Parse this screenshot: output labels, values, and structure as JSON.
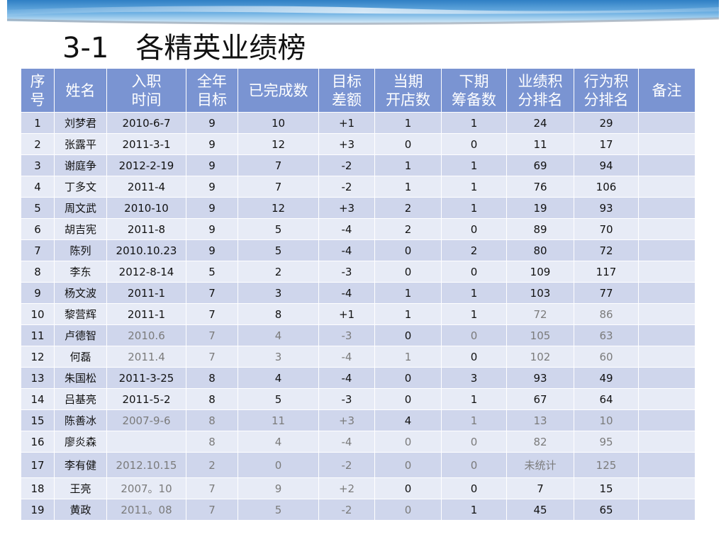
{
  "title": {
    "number": "3-1",
    "text": "各精英业绩榜"
  },
  "colors": {
    "header_bg": "#7a94d2",
    "row_odd": "#cfd6ec",
    "row_even": "#e7ebf6",
    "muted_text": "#7b7b7b"
  },
  "table": {
    "headers": [
      {
        "lines": [
          "序",
          "号"
        ]
      },
      {
        "lines": [
          "姓名"
        ]
      },
      {
        "lines": [
          "入职",
          "时间"
        ]
      },
      {
        "lines": [
          "全年",
          "目标"
        ]
      },
      {
        "lines": [
          "已完成数"
        ]
      },
      {
        "lines": [
          "目标",
          "差额"
        ]
      },
      {
        "lines": [
          "当期",
          "开店数"
        ]
      },
      {
        "lines": [
          "下期",
          "筹备数"
        ]
      },
      {
        "lines": [
          "业绩积",
          "分排名"
        ]
      },
      {
        "lines": [
          "行为积",
          "分排名"
        ]
      },
      {
        "lines": [
          "备注"
        ]
      }
    ],
    "rows": [
      [
        "1",
        "刘梦君",
        "2010-6-7",
        "9",
        "10",
        "+1",
        "1",
        "1",
        "24",
        "29",
        ""
      ],
      [
        "2",
        "张露平",
        "2011-3-1",
        "9",
        "12",
        "+3",
        "0",
        "0",
        "11",
        "17",
        ""
      ],
      [
        "3",
        "谢庭争",
        "2012-2-19",
        "9",
        "7",
        "-2",
        "1",
        "1",
        "69",
        "94",
        ""
      ],
      [
        "4",
        "丁多文",
        "2011-4",
        "9",
        "7",
        "-2",
        "1",
        "1",
        "76",
        "106",
        ""
      ],
      [
        "5",
        "周文武",
        "2010-10",
        "9",
        "12",
        "+3",
        "2",
        "1",
        "19",
        "93",
        ""
      ],
      [
        "6",
        "胡吉宪",
        "2011-8",
        "9",
        "5",
        "-4",
        "2",
        "0",
        "89",
        "70",
        ""
      ],
      [
        "7",
        "陈列",
        "2010.10.23",
        "9",
        "5",
        "-4",
        "0",
        "2",
        "80",
        "72",
        ""
      ],
      [
        "8",
        "李东",
        "2012-8-14",
        "5",
        "2",
        "-3",
        "0",
        "0",
        "109",
        "117",
        ""
      ],
      [
        "9",
        "杨文波",
        "2011-1",
        "7",
        "3",
        "-4",
        "1",
        "1",
        "103",
        "77",
        ""
      ],
      [
        "10",
        "黎营辉",
        "2011-1",
        "7",
        "8",
        "+1",
        "1",
        "1",
        "72",
        "86",
        ""
      ],
      [
        "11",
        "卢德智",
        "2010.6",
        "7",
        "4",
        "-3",
        "0",
        "0",
        "105",
        "63",
        ""
      ],
      [
        "12",
        "何磊",
        "2011.4",
        "7",
        "3",
        "-4",
        "1",
        "0",
        "102",
        "60",
        ""
      ],
      [
        "13",
        "朱国松",
        "2011-3-25",
        "8",
        "4",
        "-4",
        "0",
        "3",
        "93",
        "49",
        ""
      ],
      [
        "14",
        "吕基亮",
        "2011-5-2",
        "8",
        "5",
        "-3",
        "0",
        "1",
        "67",
        "64",
        ""
      ],
      [
        "15",
        "陈善冰",
        "2007-9-6",
        "8",
        "11",
        "+3",
        "4",
        "1",
        "13",
        "10",
        ""
      ],
      [
        "16",
        "廖炎森",
        "",
        "8",
        "4",
        "-4",
        "0",
        "0",
        "82",
        "95",
        ""
      ],
      [
        "17",
        "李有健",
        "2012.10.15",
        "2",
        "0",
        "-2",
        "0",
        "0",
        "未统计",
        "125",
        ""
      ],
      [
        "18",
        "王亮",
        "2007。10",
        "7",
        "9",
        "+2",
        "0",
        "0",
        "7",
        "15",
        ""
      ],
      [
        "19",
        "黄政",
        "2011。08",
        "7",
        "5",
        "-2",
        "0",
        "1",
        "45",
        "65",
        ""
      ]
    ]
  }
}
